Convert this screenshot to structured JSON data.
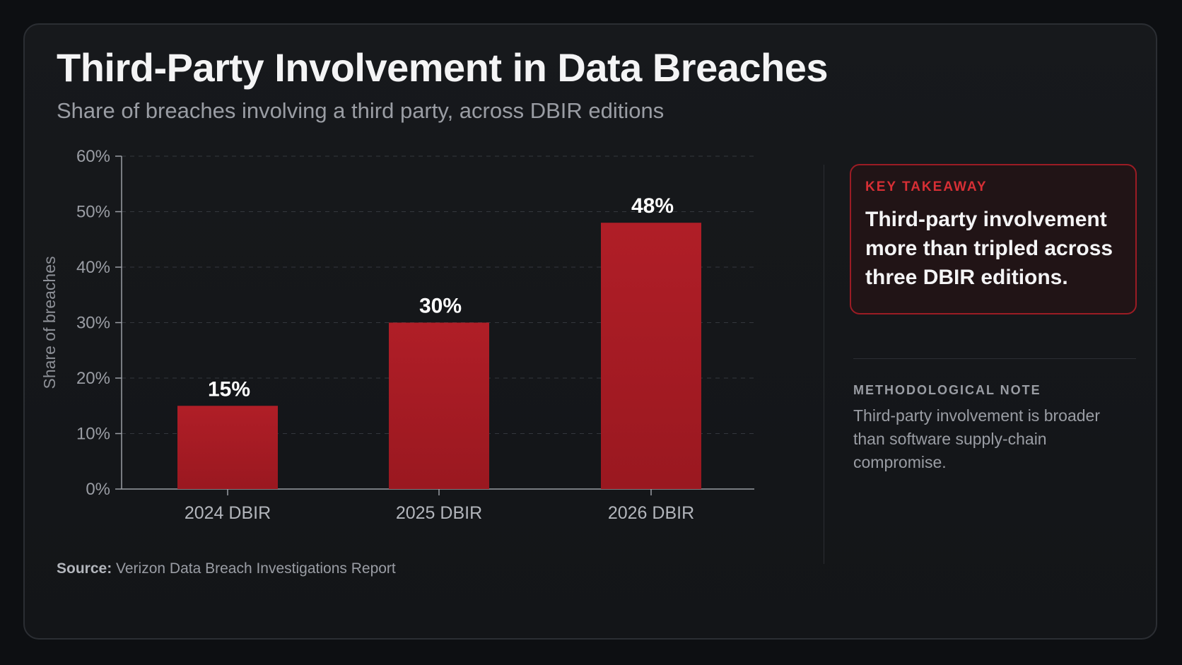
{
  "title": "Third-Party Involvement in Data Breaches",
  "subtitle": "Share of breaches involving a third party, across DBIR editions",
  "colors": {
    "bar": "#b01e27",
    "bar_bottom": "#9a1820",
    "accent": "#d72f35",
    "background": "#131518"
  },
  "chart_data": {
    "type": "bar",
    "categories": [
      "2024 DBIR",
      "2025 DBIR",
      "2026 DBIR"
    ],
    "values": [
      15,
      30,
      48
    ],
    "value_labels": [
      "15%",
      "30%",
      "48%"
    ],
    "title": "",
    "xlabel": "",
    "ylabel": "Share of breaches",
    "ylim": [
      0,
      60
    ],
    "yticks": [
      0,
      10,
      20,
      30,
      40,
      50,
      60
    ],
    "ytick_labels": [
      "0%",
      "10%",
      "20%",
      "30%",
      "40%",
      "50%",
      "60%"
    ],
    "grid": "horizontal dashed",
    "legend": "none"
  },
  "takeaway": {
    "label": "KEY TAKEAWAY",
    "text": "Third-party involvement more than tripled across three DBIR editions."
  },
  "note": {
    "label": "METHODOLOGICAL NOTE",
    "text": "Third-party involvement is broader than software supply-chain compromise."
  },
  "source": {
    "label": "Source:",
    "text": "Verizon Data Breach Investigations Report"
  }
}
